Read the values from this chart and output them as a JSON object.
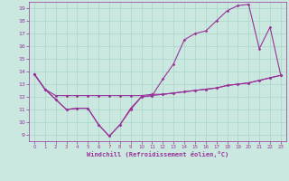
{
  "bg_color": "#cae8e0",
  "line_color": "#993399",
  "grid_color": "#aad4c8",
  "xlabel": "Windchill (Refroidissement éolien,°C)",
  "xlim": [
    -0.5,
    23.5
  ],
  "ylim": [
    8.5,
    19.5
  ],
  "xticks": [
    0,
    1,
    2,
    3,
    4,
    5,
    6,
    7,
    8,
    9,
    10,
    11,
    12,
    13,
    14,
    15,
    16,
    17,
    18,
    19,
    20,
    21,
    22,
    23
  ],
  "yticks": [
    9,
    10,
    11,
    12,
    13,
    14,
    15,
    16,
    17,
    18,
    19
  ],
  "line1": {
    "x": [
      0,
      1,
      2,
      3,
      4,
      5,
      6,
      7,
      8,
      9,
      10,
      11,
      12,
      13,
      14,
      15,
      16,
      17,
      18,
      19,
      20,
      21,
      22,
      23
    ],
    "y": [
      13.8,
      12.6,
      11.8,
      11.0,
      11.1,
      11.1,
      9.8,
      8.9,
      9.8,
      11.1,
      12.0,
      12.1,
      13.4,
      14.6,
      16.5,
      17.0,
      17.2,
      18.0,
      18.8,
      19.2,
      19.3,
      15.8,
      17.5,
      13.7
    ]
  },
  "line2": {
    "x": [
      0,
      1,
      2,
      3,
      4,
      5,
      6,
      7,
      8,
      9,
      10,
      11,
      12,
      13,
      14,
      15,
      16,
      17,
      18,
      19,
      20,
      21,
      22,
      23
    ],
    "y": [
      13.8,
      12.6,
      12.1,
      12.1,
      12.1,
      12.1,
      12.1,
      12.1,
      12.1,
      12.1,
      12.1,
      12.2,
      12.2,
      12.3,
      12.4,
      12.5,
      12.6,
      12.7,
      12.9,
      13.0,
      13.1,
      13.3,
      13.5,
      13.7
    ]
  },
  "line3": {
    "x": [
      0,
      1,
      2,
      3,
      4,
      5,
      6,
      7,
      8,
      9,
      10,
      11,
      12,
      13,
      14,
      15,
      16,
      17,
      18,
      19,
      20,
      21,
      22,
      23
    ],
    "y": [
      13.8,
      12.6,
      11.8,
      11.0,
      11.1,
      11.1,
      9.8,
      8.9,
      9.8,
      11.0,
      12.0,
      12.1,
      12.2,
      12.3,
      12.4,
      12.5,
      12.6,
      12.7,
      12.9,
      13.0,
      13.1,
      13.3,
      13.5,
      13.7
    ]
  }
}
